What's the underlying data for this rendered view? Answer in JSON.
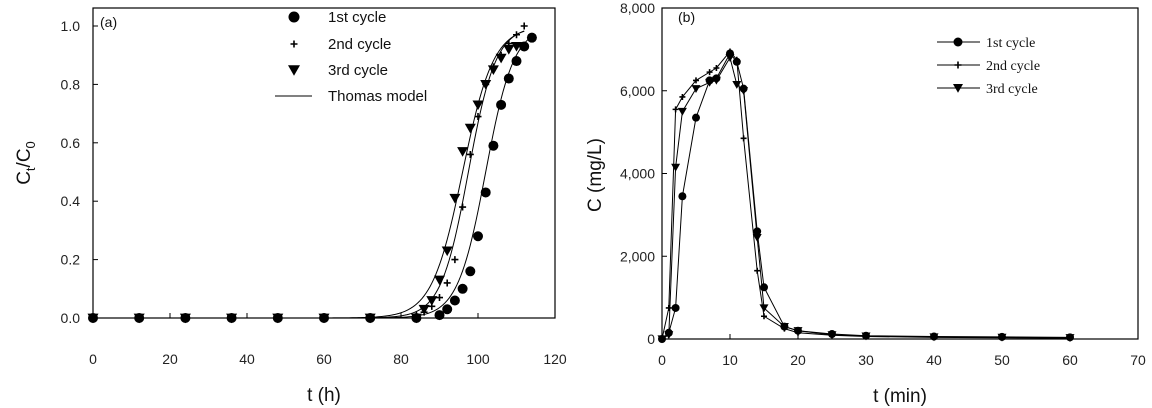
{
  "chart_data": [
    {
      "type": "scatter",
      "panel_label": "(a)",
      "xlabel": "t (h)",
      "ylabel_main": "C",
      "ylabel_sub1": "t",
      "ylabel_mid": "/C",
      "ylabel_sub2": "0",
      "xlim": [
        0,
        120
      ],
      "ylim": [
        0,
        1.0
      ],
      "xticks": [
        0,
        20,
        40,
        60,
        80,
        100,
        120
      ],
      "yticks": [
        0.0,
        0.2,
        0.4,
        0.6,
        0.8,
        1.0
      ],
      "ytick_labels": [
        "0.0",
        "0.2",
        "0.4",
        "0.6",
        "0.8",
        "1.0"
      ],
      "legend_position": "top-center",
      "series": [
        {
          "name": "1st cycle",
          "marker": "circle",
          "x": [
            0,
            12,
            24,
            36,
            48,
            60,
            72,
            84,
            90,
            92,
            94,
            96,
            98,
            100,
            102,
            104,
            106,
            108,
            110,
            112,
            114
          ],
          "y": [
            0.0,
            0.0,
            0.0,
            0.0,
            0.0,
            0.0,
            0.0,
            0.0,
            0.01,
            0.03,
            0.06,
            0.1,
            0.16,
            0.28,
            0.43,
            0.59,
            0.73,
            0.82,
            0.88,
            0.93,
            0.96
          ]
        },
        {
          "name": "2nd cycle",
          "marker": "plus",
          "x": [
            0,
            12,
            24,
            36,
            48,
            60,
            72,
            84,
            86,
            88,
            90,
            92,
            94,
            96,
            98,
            100,
            102,
            104,
            106,
            108,
            110,
            112
          ],
          "y": [
            0.0,
            0.0,
            0.0,
            0.0,
            0.0,
            0.0,
            0.0,
            0.01,
            0.02,
            0.04,
            0.07,
            0.12,
            0.2,
            0.38,
            0.56,
            0.69,
            0.8,
            0.86,
            0.9,
            0.94,
            0.97,
            1.0
          ]
        },
        {
          "name": "3rd cycle",
          "marker": "triangle-down",
          "x": [
            0,
            12,
            24,
            36,
            48,
            60,
            72,
            84,
            86,
            88,
            90,
            92,
            94,
            96,
            98,
            100,
            102,
            104,
            106,
            108,
            110
          ],
          "y": [
            0.0,
            0.0,
            0.0,
            0.0,
            0.0,
            0.0,
            0.0,
            0.0,
            0.03,
            0.06,
            0.13,
            0.23,
            0.41,
            0.57,
            0.65,
            0.73,
            0.8,
            0.85,
            0.89,
            0.92,
            0.93
          ]
        },
        {
          "name": "Thomas model",
          "marker": "line",
          "fits": [
            {
              "t0": 102.0,
              "k": 0.275,
              "x_range": [
                0,
                114
              ]
            },
            {
              "t0": 97.5,
              "k": 0.28,
              "x_range": [
                0,
                112
              ]
            },
            {
              "t0": 96.0,
              "k": 0.25,
              "x_range": [
                0,
                112
              ]
            }
          ]
        }
      ]
    },
    {
      "type": "line",
      "panel_label": "(b)",
      "xlabel": "t (min)",
      "ylabel": "C (mg/L)",
      "xlim": [
        0,
        70
      ],
      "ylim": [
        0,
        8000
      ],
      "xticks": [
        0,
        10,
        20,
        30,
        40,
        50,
        60,
        70
      ],
      "yticks": [
        0,
        2000,
        4000,
        6000,
        8000
      ],
      "ytick_labels": [
        "0",
        "2,000",
        "4,000",
        "6,000",
        "8,000"
      ],
      "legend_position": "top-right",
      "series": [
        {
          "name": "1st cycle",
          "marker": "circle",
          "x": [
            0,
            1,
            2,
            3,
            5,
            7,
            8,
            10,
            11,
            12,
            14,
            15,
            18,
            20,
            25,
            30,
            40,
            50,
            60
          ],
          "y": [
            0,
            150,
            750,
            3450,
            5350,
            6250,
            6300,
            6900,
            6700,
            6050,
            2600,
            1250,
            300,
            200,
            120,
            80,
            60,
            50,
            40
          ]
        },
        {
          "name": "2nd cycle",
          "marker": "plus",
          "x": [
            0,
            1,
            2,
            3,
            5,
            7,
            8,
            10,
            11,
            12,
            14,
            15,
            18,
            20,
            25,
            30,
            40,
            50,
            60
          ],
          "y": [
            0,
            750,
            5550,
            5850,
            6250,
            6450,
            6550,
            6950,
            6750,
            4850,
            1650,
            550,
            250,
            150,
            90,
            60,
            40,
            30,
            20
          ]
        },
        {
          "name": "3rd cycle",
          "marker": "triangle-down",
          "x": [
            0,
            1,
            2,
            3,
            5,
            7,
            8,
            10,
            11,
            12,
            14,
            15,
            18,
            20,
            25,
            30,
            40,
            50,
            60
          ],
          "y": [
            0,
            100,
            4150,
            5500,
            6050,
            6200,
            6250,
            6800,
            6150,
            6000,
            2450,
            750,
            300,
            200,
            100,
            70,
            50,
            40,
            30
          ]
        }
      ]
    }
  ]
}
